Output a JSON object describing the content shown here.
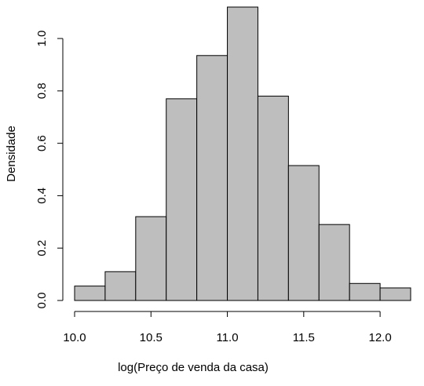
{
  "chart_data": {
    "type": "bar",
    "histogram": true,
    "xlabel": "log(Preço de venda da casa)",
    "ylabel": "Densidade",
    "bin_edges": [
      10.0,
      10.2,
      10.4,
      10.6,
      10.8,
      11.0,
      11.2,
      11.4,
      11.6,
      11.8,
      12.0,
      12.2
    ],
    "values": [
      0.055,
      0.11,
      0.32,
      0.77,
      0.935,
      1.12,
      0.78,
      0.515,
      0.29,
      0.065,
      0.048
    ],
    "xlim": [
      10.0,
      12.2
    ],
    "ylim": [
      0,
      1.12
    ],
    "x_ticks": [
      10.0,
      10.5,
      11.0,
      11.5,
      12.0
    ],
    "x_tick_labels": [
      "10.0",
      "10.5",
      "11.0",
      "11.5",
      "12.0"
    ],
    "y_ticks": [
      0.0,
      0.2,
      0.4,
      0.6,
      0.8,
      1.0
    ],
    "y_tick_labels": [
      "0.0",
      "0.2",
      "0.4",
      "0.6",
      "0.8",
      "1.0"
    ],
    "grid": false,
    "colors": {
      "bar_fill": "#bebebe",
      "bar_stroke": "#000000",
      "axis": "#000000"
    }
  }
}
